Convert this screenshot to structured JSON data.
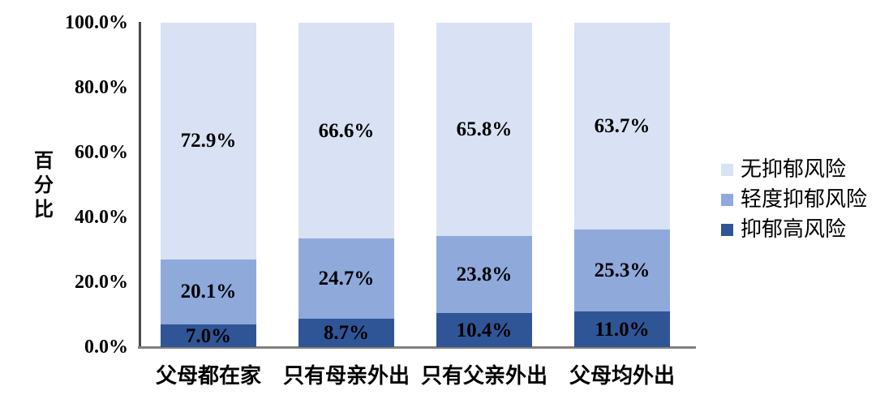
{
  "chart_data": {
    "type": "bar",
    "stacked": true,
    "orientation": "vertical",
    "title": "",
    "xlabel": "",
    "ylabel": "百分比",
    "ylim": [
      0,
      100
    ],
    "grid": false,
    "legend_position": "right",
    "background": "#ffffff",
    "categories": [
      "父母都在家",
      "只有母亲外出",
      "只有父亲外出",
      "父母均外出"
    ],
    "y_ticks": [
      "100.0%",
      "80.0%",
      "60.0%",
      "40.0%",
      "20.0%",
      "0.0%"
    ],
    "series": [
      {
        "name": "抑郁高风险",
        "color": "#2F5596",
        "values": [
          7.0,
          8.7,
          10.4,
          11.0
        ],
        "labels": [
          "7.0%",
          "8.7%",
          "10.4%",
          "11.0%"
        ]
      },
      {
        "name": "轻度抑郁风险",
        "color": "#8FA9DB",
        "values": [
          20.1,
          24.7,
          23.8,
          25.3
        ],
        "labels": [
          "20.1%",
          "24.7%",
          "23.8%",
          "25.3%"
        ]
      },
      {
        "name": "无抑郁风险",
        "color": "#D9E2F4",
        "values": [
          72.9,
          66.6,
          65.8,
          63.7
        ],
        "labels": [
          "72.9%",
          "66.6%",
          "65.8%",
          "63.7%"
        ]
      }
    ],
    "legend": [
      "无抑郁风险",
      "轻度抑郁风险",
      "抑郁高风险"
    ],
    "axis_colors": {
      "y_axis_line": "#4A4A4A",
      "x_axis_line": "#808080"
    },
    "label_color": "#000000"
  }
}
